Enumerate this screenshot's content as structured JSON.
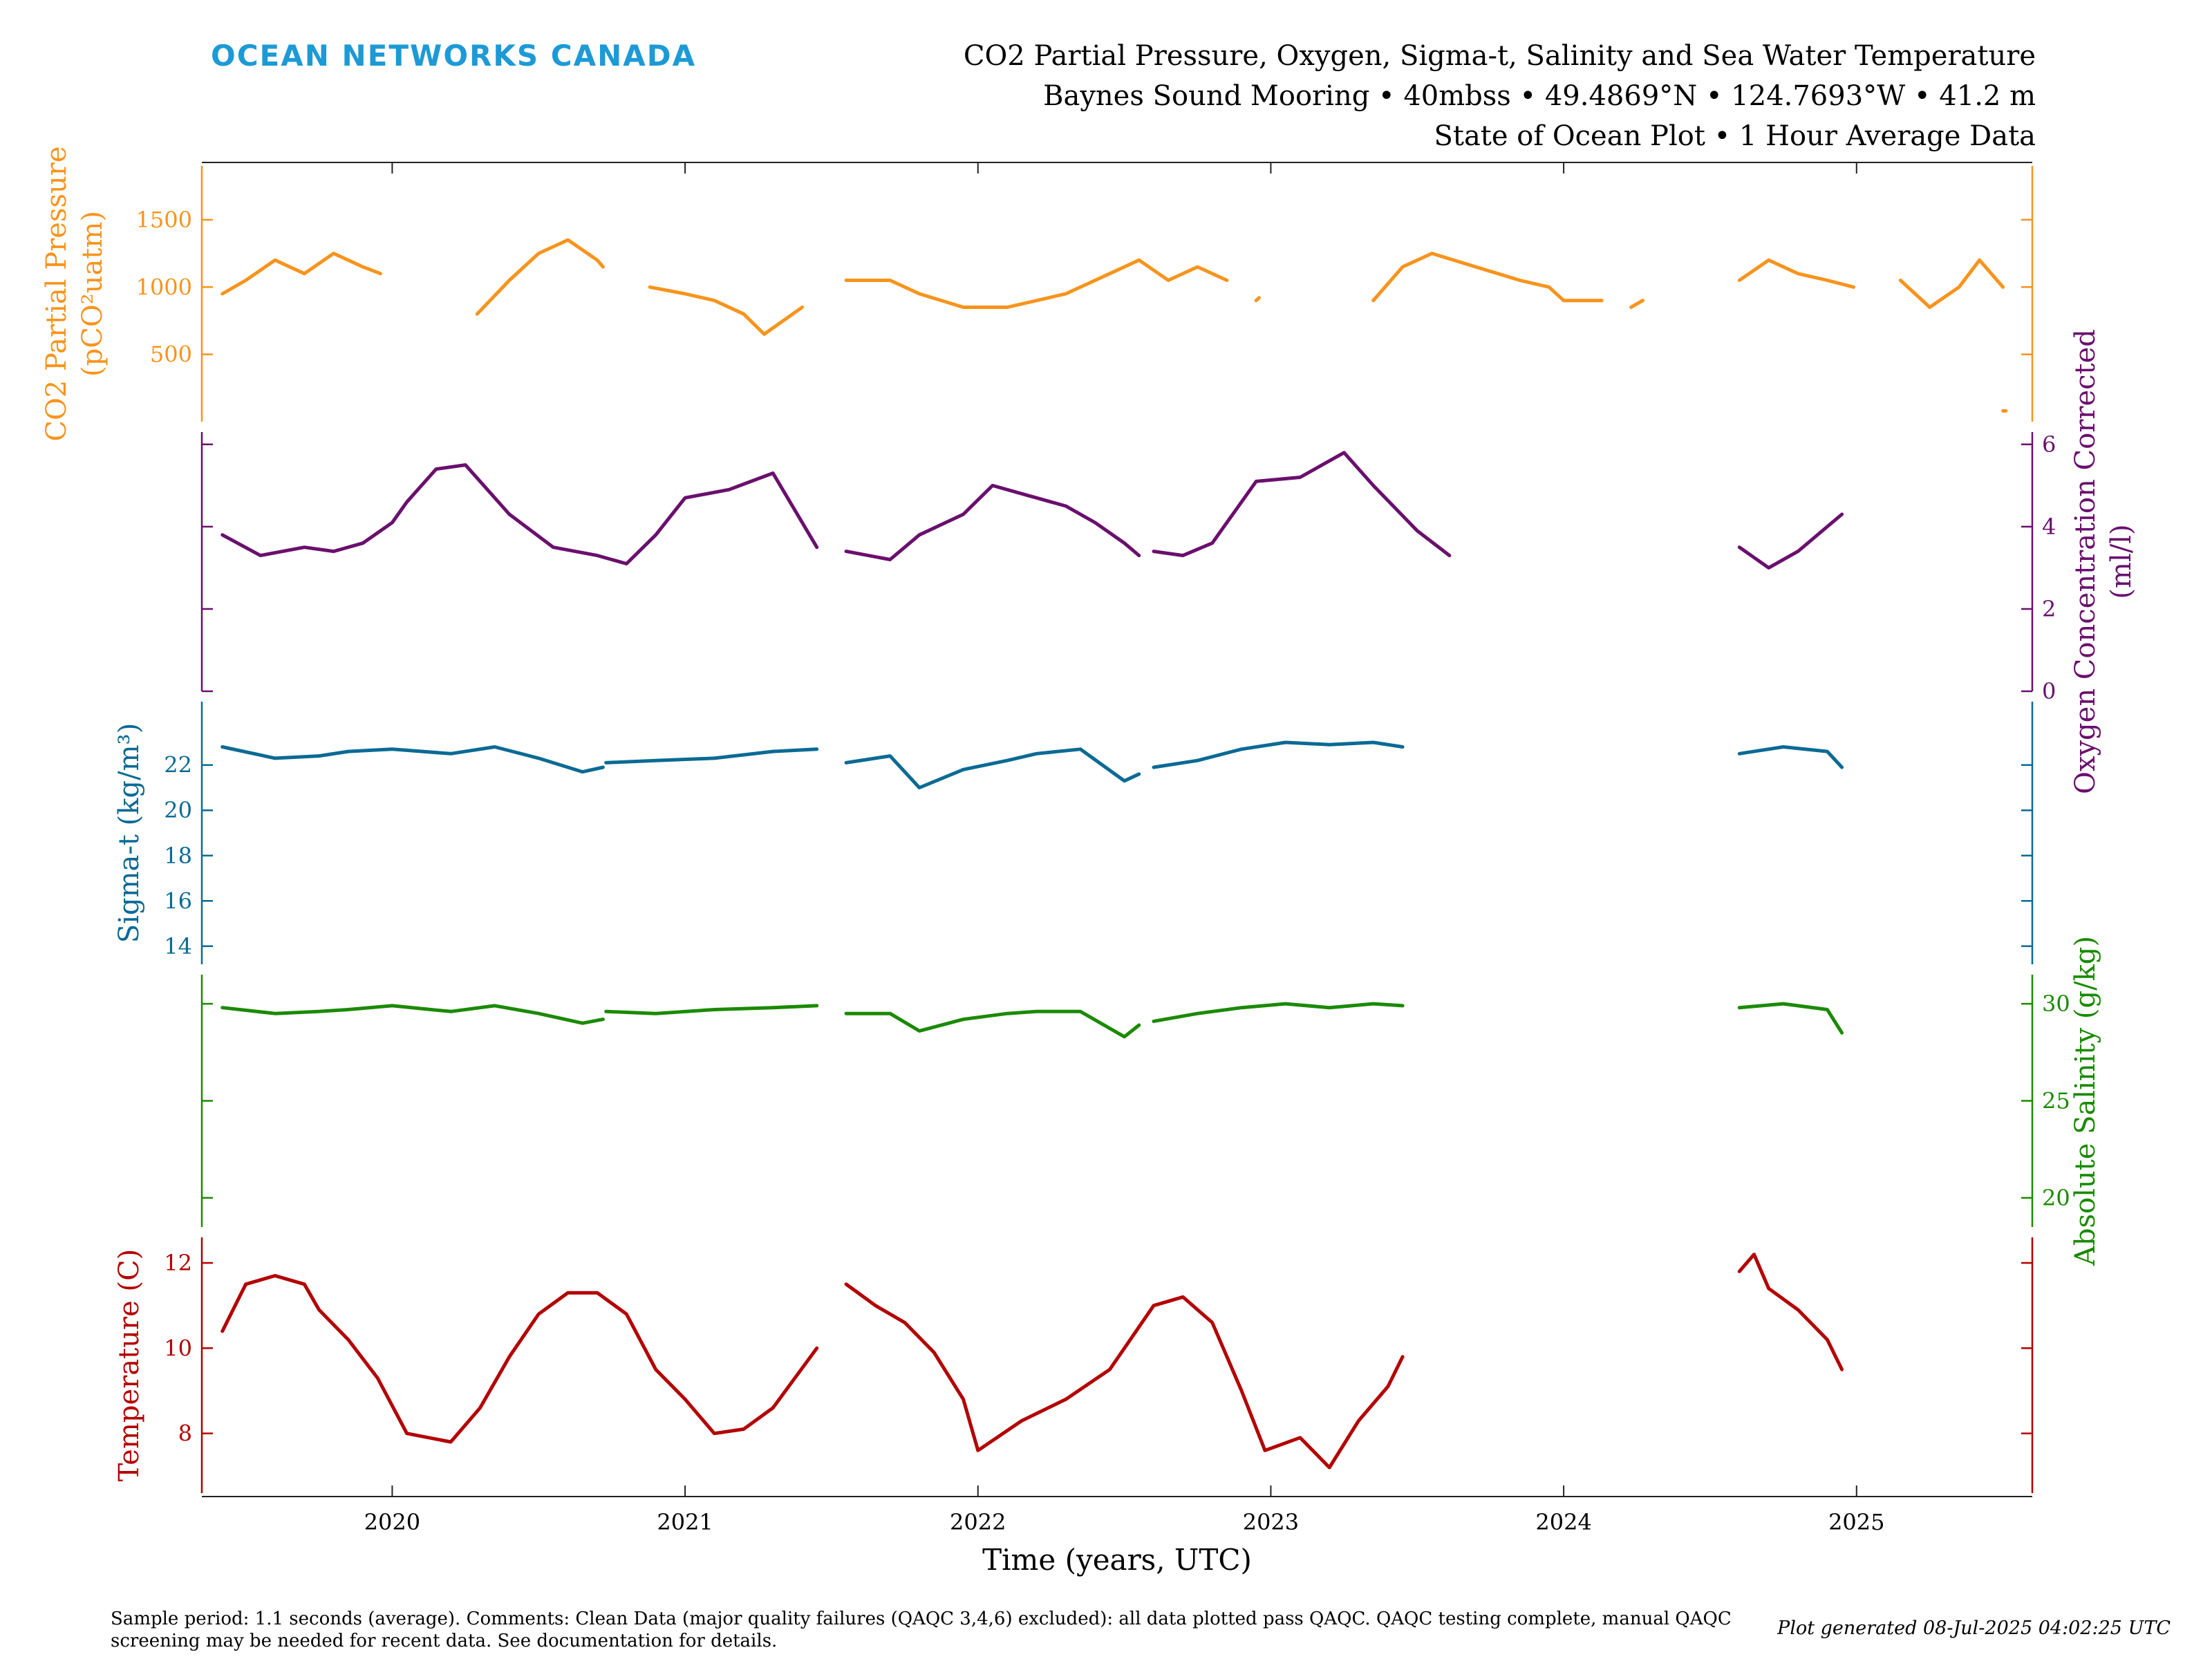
{
  "header": {
    "brand": "OCEAN NETWORKS CANADA",
    "title_line1": "CO2 Partial Pressure, Oxygen, Sigma-t, Salinity and Sea Water Temperature",
    "title_line2": "Baynes Sound Mooring • 40mbss • 49.4869°N • 124.7693°W • 41.2 m",
    "title_line3": "State of Ocean Plot • 1 Hour Average Data"
  },
  "footer": {
    "comments": "Sample period: 1.1 seconds (average). Comments: Clean Data (major quality failures (QAQC 3,4,6) excluded): all data plotted pass QAQC. QAQC testing complete, manual QAQC screening may be needed for recent data. See documentation for details.",
    "generated": "Plot generated 08-Jul-2025 04:02:25 UTC"
  },
  "chart_data": {
    "type": "line",
    "xlabel": "Time (years, UTC)",
    "xlim": [
      2019.35,
      2025.6
    ],
    "xticks": [
      2020,
      2021,
      2022,
      2023,
      2024,
      2025
    ],
    "colors": {
      "co2": "#f7941d",
      "oxygen": "#6a0f6e",
      "sigma": "#0a6a94",
      "salinity": "#1a8a00",
      "temperature": "#b30000"
    },
    "panels": [
      {
        "key": "co2",
        "ylabel_line1": "CO2 Partial Pressure",
        "ylabel_line2": "(pCO²uatm)",
        "axis_side": "left",
        "ylim": [
          0,
          1900
        ],
        "yticks": [
          500,
          1000,
          1500
        ],
        "segments": [
          {
            "x": [
              2019.42,
              2019.5,
              2019.6,
              2019.7,
              2019.8,
              2019.9,
              2019.96
            ],
            "y": [
              950,
              1050,
              1200,
              1100,
              1250,
              1150,
              1100
            ]
          },
          {
            "x": [
              2020.29,
              2020.4,
              2020.5,
              2020.6,
              2020.7,
              2020.72
            ],
            "y": [
              800,
              1050,
              1250,
              1350,
              1200,
              1150
            ]
          },
          {
            "x": [
              2020.88,
              2021.0,
              2021.1,
              2021.2,
              2021.27,
              2021.4
            ],
            "y": [
              1000,
              950,
              900,
              800,
              650,
              850
            ]
          },
          {
            "x": [
              2021.55,
              2021.7,
              2021.8,
              2021.95,
              2022.1,
              2022.3,
              2022.45,
              2022.55,
              2022.65,
              2022.75,
              2022.85
            ],
            "y": [
              1050,
              1050,
              950,
              850,
              850,
              950,
              1100,
              1200,
              1050,
              1150,
              1050
            ]
          },
          {
            "x": [
              2022.95,
              2022.96
            ],
            "y": [
              900,
              920
            ]
          },
          {
            "x": [
              2023.35,
              2023.45,
              2023.55,
              2023.7,
              2023.85,
              2023.95,
              2024.0,
              2024.13
            ],
            "y": [
              900,
              1150,
              1250,
              1150,
              1050,
              1000,
              900,
              900
            ]
          },
          {
            "x": [
              2024.23,
              2024.27
            ],
            "y": [
              850,
              900
            ]
          },
          {
            "x": [
              2024.6,
              2024.7,
              2024.8,
              2024.9,
              2024.99
            ],
            "y": [
              1050,
              1200,
              1100,
              1050,
              1000
            ]
          },
          {
            "x": [
              2025.15,
              2025.25,
              2025.35,
              2025.42,
              2025.5
            ],
            "y": [
              1050,
              850,
              1000,
              1200,
              1000
            ]
          },
          {
            "x": [
              2025.5,
              2025.51
            ],
            "y": [
              80,
              80
            ]
          }
        ]
      },
      {
        "key": "oxygen",
        "ylabel_line1": "Oxygen Concentration Corrected",
        "ylabel_line2": "(ml/l)",
        "axis_side": "right",
        "ylim": [
          0,
          6.3
        ],
        "yticks": [
          0,
          2,
          4,
          6
        ],
        "segments": [
          {
            "x": [
              2019.42,
              2019.55,
              2019.7,
              2019.8,
              2019.9,
              2020.0,
              2020.05,
              2020.15,
              2020.25,
              2020.4,
              2020.55,
              2020.7,
              2020.8,
              2020.9,
              2021.0,
              2021.15,
              2021.3,
              2021.45
            ],
            "y": [
              3.8,
              3.3,
              3.5,
              3.4,
              3.6,
              4.1,
              4.6,
              5.4,
              5.5,
              4.3,
              3.5,
              3.3,
              3.1,
              3.8,
              4.7,
              4.9,
              5.3,
              3.5
            ]
          },
          {
            "x": [
              2021.55,
              2021.7,
              2021.8,
              2021.95,
              2022.05,
              2022.15,
              2022.3,
              2022.4,
              2022.5,
              2022.55
            ],
            "y": [
              3.4,
              3.2,
              3.8,
              4.3,
              5.0,
              4.8,
              4.5,
              4.1,
              3.6,
              3.3
            ]
          },
          {
            "x": [
              2022.6,
              2022.7,
              2022.8,
              2022.95,
              2023.1,
              2023.25,
              2023.35,
              2023.5,
              2023.61
            ],
            "y": [
              3.4,
              3.3,
              3.6,
              5.1,
              5.2,
              5.8,
              5.0,
              3.9,
              3.3
            ]
          },
          {
            "x": [
              2024.6,
              2024.7,
              2024.8,
              2024.9,
              2024.95
            ],
            "y": [
              3.5,
              3.0,
              3.4,
              4.0,
              4.3
            ]
          }
        ]
      },
      {
        "key": "sigma",
        "ylabel_line1": "Sigma-t (kg/m³)",
        "ylabel_line2": "",
        "axis_side": "left",
        "ylim": [
          13.2,
          24.8
        ],
        "yticks": [
          14,
          16,
          18,
          20,
          22
        ],
        "segments": [
          {
            "x": [
              2019.42,
              2019.6,
              2019.75,
              2019.85,
              2020.0,
              2020.2,
              2020.35,
              2020.5,
              2020.65,
              2020.72
            ],
            "y": [
              22.8,
              22.3,
              22.4,
              22.6,
              22.7,
              22.5,
              22.8,
              22.3,
              21.7,
              21.9
            ]
          },
          {
            "x": [
              2020.73,
              2020.9,
              2021.1,
              2021.3,
              2021.45
            ],
            "y": [
              22.1,
              22.2,
              22.3,
              22.6,
              22.7
            ]
          },
          {
            "x": [
              2021.55,
              2021.7,
              2021.8,
              2021.95,
              2022.1,
              2022.2,
              2022.35,
              2022.5,
              2022.55
            ],
            "y": [
              22.1,
              22.4,
              21.0,
              21.8,
              22.2,
              22.5,
              22.7,
              21.3,
              21.6
            ]
          },
          {
            "x": [
              2022.6,
              2022.75,
              2022.9,
              2023.05,
              2023.2,
              2023.35,
              2023.45
            ],
            "y": [
              21.9,
              22.2,
              22.7,
              23.0,
              22.9,
              23.0,
              22.8
            ]
          },
          {
            "x": [
              2024.6,
              2024.75,
              2024.9,
              2024.95
            ],
            "y": [
              22.5,
              22.8,
              22.6,
              21.9
            ]
          }
        ]
      },
      {
        "key": "salinity",
        "ylabel_line1": "Absolute Salinity (g/kg)",
        "ylabel_line2": "",
        "axis_side": "right",
        "ylim": [
          18.5,
          31.5
        ],
        "yticks": [
          20,
          25,
          30
        ],
        "segments": [
          {
            "x": [
              2019.42,
              2019.6,
              2019.75,
              2019.85,
              2020.0,
              2020.2,
              2020.35,
              2020.5,
              2020.65,
              2020.72
            ],
            "y": [
              29.8,
              29.5,
              29.6,
              29.7,
              29.9,
              29.6,
              29.9,
              29.5,
              29.0,
              29.2
            ]
          },
          {
            "x": [
              2020.73,
              2020.9,
              2021.1,
              2021.3,
              2021.45
            ],
            "y": [
              29.6,
              29.5,
              29.7,
              29.8,
              29.9
            ]
          },
          {
            "x": [
              2021.55,
              2021.7,
              2021.8,
              2021.95,
              2022.1,
              2022.2,
              2022.35,
              2022.5,
              2022.55
            ],
            "y": [
              29.5,
              29.5,
              28.6,
              29.2,
              29.5,
              29.6,
              29.6,
              28.3,
              28.9
            ]
          },
          {
            "x": [
              2022.6,
              2022.75,
              2022.9,
              2023.05,
              2023.2,
              2023.35,
              2023.45
            ],
            "y": [
              29.1,
              29.5,
              29.8,
              30.0,
              29.8,
              30.0,
              29.9
            ]
          },
          {
            "x": [
              2024.6,
              2024.75,
              2024.9,
              2024.95
            ],
            "y": [
              29.8,
              30.0,
              29.7,
              28.5
            ]
          }
        ]
      },
      {
        "key": "temperature",
        "ylabel_line1": "Temperature (C)",
        "ylabel_line2": "",
        "axis_side": "left",
        "ylim": [
          6.6,
          12.6
        ],
        "yticks": [
          8,
          10,
          12
        ],
        "segments": [
          {
            "x": [
              2019.42,
              2019.5,
              2019.6,
              2019.7,
              2019.75,
              2019.85,
              2019.95,
              2020.05,
              2020.2,
              2020.3,
              2020.4,
              2020.5,
              2020.6,
              2020.7,
              2020.8,
              2020.9,
              2021.0,
              2021.1,
              2021.2,
              2021.3,
              2021.45
            ],
            "y": [
              10.4,
              11.5,
              11.7,
              11.5,
              10.9,
              10.2,
              9.3,
              8.0,
              7.8,
              8.6,
              9.8,
              10.8,
              11.3,
              11.3,
              10.8,
              9.5,
              8.8,
              8.0,
              8.1,
              8.6,
              10.0
            ]
          },
          {
            "x": [
              2021.55,
              2021.65,
              2021.75,
              2021.85,
              2021.95,
              2022.0,
              2022.15,
              2022.3,
              2022.45,
              2022.6,
              2022.7,
              2022.8,
              2022.9,
              2022.98,
              2023.1,
              2023.2,
              2023.3,
              2023.4,
              2023.45
            ],
            "y": [
              11.5,
              11.0,
              10.6,
              9.9,
              8.8,
              7.6,
              8.3,
              8.8,
              9.5,
              11.0,
              11.2,
              10.6,
              9.0,
              7.6,
              7.9,
              7.2,
              8.3,
              9.1,
              9.8
            ]
          },
          {
            "x": [
              2024.6,
              2024.65,
              2024.7,
              2024.8,
              2024.9,
              2024.95
            ],
            "y": [
              11.8,
              12.2,
              11.4,
              10.9,
              10.2,
              9.5
            ]
          }
        ]
      }
    ]
  }
}
